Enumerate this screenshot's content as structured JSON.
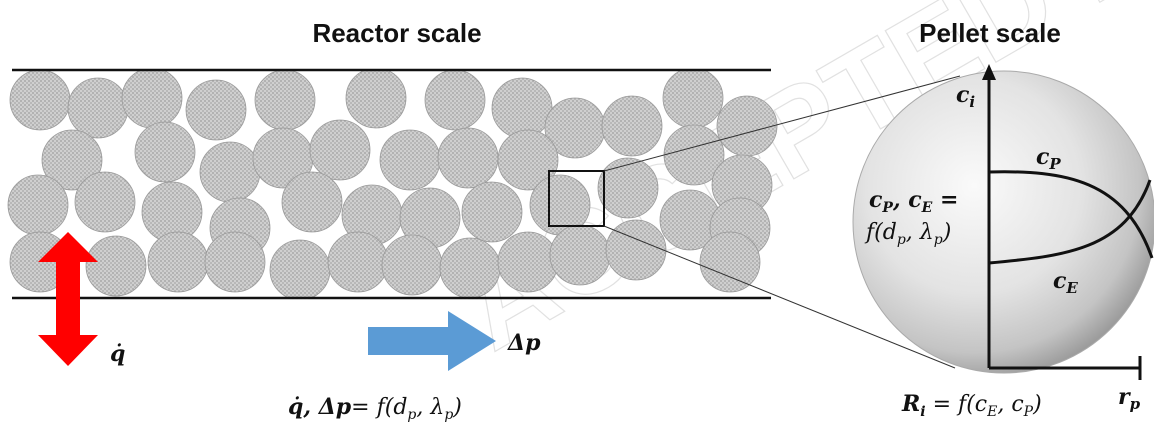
{
  "headings": {
    "reactor_scale": "Reactor scale",
    "pellet_scale": "Pellet scale"
  },
  "labels": {
    "q_dot": "q̇",
    "delta_p": "Δp"
  },
  "equations": {
    "reactor": {
      "lhs": "q̇, Δp",
      "rhs_prefix": "= ",
      "func": "f(d",
      "sub1": "p",
      "mid": ", λ",
      "sub2": "p",
      "end": ")"
    },
    "pellet_rate": {
      "R": "R",
      "R_sub": "i",
      "eq": " = f(c",
      "sub1": "E",
      "mid": ", c",
      "sub2": "P",
      "end": ")"
    },
    "pellet_conc_line1": {
      "c1": "c",
      "s1": "P",
      "comma": ", c",
      "s2": "E",
      "eq": " ="
    },
    "pellet_conc_line2": {
      "func": "f(d",
      "s1": "p",
      "mid": ", λ",
      "s2": "p",
      "end": ")"
    }
  },
  "axes": {
    "y_label": "c",
    "y_sub": "i",
    "x_label": "r",
    "x_sub": "p"
  },
  "curves": {
    "cp_label": "c",
    "cp_sub": "P",
    "ce_label": "c",
    "ce_sub": "E"
  },
  "colors": {
    "pellet_fill": "#c6c6c6",
    "pellet_stroke": "#9a9a9a",
    "red_arrow": "#ff0000",
    "blue_arrow": "#5b9bd5",
    "lines": "#111111"
  },
  "watermark": "ACCEPTED MANUSCRIPT"
}
